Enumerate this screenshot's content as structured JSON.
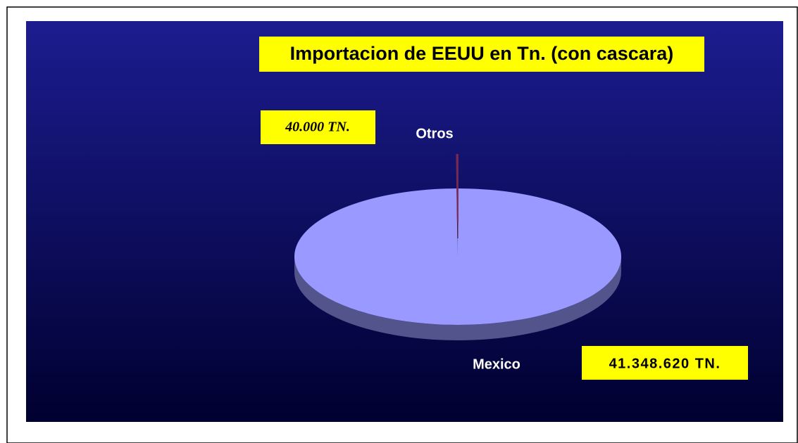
{
  "chart_data": {
    "type": "pie3d",
    "title": "Importacion de EEUU en Tn. (con cascara)",
    "categories": [
      "Mexico",
      "Otros"
    ],
    "values": [
      41348620,
      40000
    ],
    "value_labels": [
      "41.348.620 TN.",
      "40.000 TN."
    ],
    "colors": [
      "#9999ff",
      "#993366"
    ],
    "exploded": [
      false,
      true
    ]
  }
}
